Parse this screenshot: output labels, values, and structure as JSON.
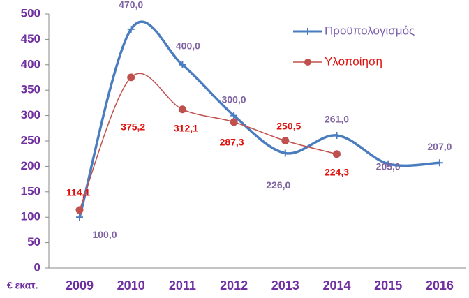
{
  "chart_data": {
    "type": "line",
    "y_label": "€ εκατ.",
    "categories": [
      "2009",
      "2010",
      "2011",
      "2012",
      "2013",
      "2014",
      "2015",
      "2016"
    ],
    "series": [
      {
        "name": "Προϋπολογισμός",
        "color": "#4a7cc0",
        "label_color": "#8064a2",
        "marker": "plus",
        "values": [
          100,
          470,
          400,
          300,
          226,
          261,
          205,
          207
        ],
        "value_labels": [
          "100,0",
          "470,0",
          "400,0",
          "300,0",
          "226,0",
          "261,0",
          "205,0",
          "207,0"
        ]
      },
      {
        "name": "Υλοποίηση",
        "color": "#c0504d",
        "label_color": "#e0100c",
        "marker": "circle",
        "values": [
          114.1,
          375.2,
          312.1,
          287.3,
          250.5,
          224.3,
          null,
          null
        ],
        "value_labels": [
          "114,1",
          "375,2",
          "312,1",
          "287,3",
          "250,5",
          "224,3",
          null,
          null
        ]
      }
    ],
    "ylim": [
      0,
      500
    ],
    "yticks": [
      0,
      50,
      100,
      150,
      200,
      250,
      300,
      350,
      400,
      450,
      500
    ],
    "grid": false,
    "smooth": true,
    "legend": "top-right"
  }
}
